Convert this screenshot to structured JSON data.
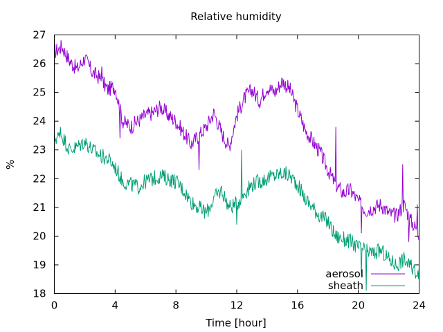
{
  "chart_data": {
    "type": "line",
    "title": "Relative humidity",
    "xlabel": "Time [hour]",
    "ylabel": "%",
    "xlim": [
      0,
      24
    ],
    "ylim": [
      18,
      27
    ],
    "xticks": [
      0,
      4,
      8,
      12,
      16,
      20,
      24
    ],
    "yticks": [
      18,
      19,
      20,
      21,
      22,
      23,
      24,
      25,
      26,
      27
    ],
    "grid": false,
    "legend_position": "bottom-right",
    "series": [
      {
        "name": "aerosol",
        "color": "#9400d3",
        "x": [
          0,
          0.5,
          1,
          1.5,
          2,
          2.5,
          3,
          3.5,
          4,
          4.5,
          5,
          5.5,
          6,
          6.5,
          7,
          7.5,
          8,
          8.5,
          9,
          9.5,
          10,
          10.5,
          11,
          11.5,
          12,
          12.5,
          13,
          13.5,
          14,
          14.5,
          15,
          15.5,
          16,
          16.5,
          17,
          17.5,
          18,
          18.5,
          19,
          19.5,
          20,
          20.5,
          21,
          21.5,
          22,
          22.5,
          23,
          23.5,
          24
        ],
        "y": [
          26.4,
          26.6,
          26.1,
          25.8,
          26.2,
          25.7,
          25.5,
          25.1,
          25.2,
          24.0,
          23.8,
          24.0,
          24.2,
          24.3,
          24.5,
          24.2,
          24.0,
          23.6,
          23.2,
          23.5,
          23.8,
          24.3,
          23.6,
          23.1,
          24.2,
          24.8,
          25.1,
          24.7,
          25.2,
          25.0,
          25.4,
          25.1,
          24.4,
          23.7,
          23.3,
          22.9,
          22.3,
          21.8,
          21.5,
          21.6,
          21.2,
          20.9,
          21.0,
          21.1,
          20.8,
          20.7,
          21.1,
          20.5,
          20.1
        ],
        "spikes": [
          [
            3.1,
            25.9
          ],
          [
            4.3,
            23.4
          ],
          [
            9.5,
            22.3
          ],
          [
            18.5,
            23.8
          ],
          [
            20.2,
            20.1
          ],
          [
            22.9,
            22.5
          ],
          [
            23.3,
            19.8
          ],
          [
            23.9,
            21.1
          ]
        ]
      },
      {
        "name": "sheath",
        "color": "#009e73",
        "x": [
          0,
          0.5,
          1,
          1.5,
          2,
          2.5,
          3,
          3.5,
          4,
          4.5,
          5,
          5.5,
          6,
          6.5,
          7,
          7.5,
          8,
          8.5,
          9,
          9.5,
          10,
          10.5,
          11,
          11.5,
          12,
          12.5,
          13,
          13.5,
          14,
          14.5,
          15,
          15.5,
          16,
          16.5,
          17,
          17.5,
          18,
          18.5,
          19,
          19.5,
          20,
          20.5,
          21,
          21.5,
          22,
          22.5,
          23,
          23.5,
          24
        ],
        "y": [
          23.4,
          23.5,
          23.0,
          23.1,
          23.3,
          23.0,
          22.8,
          22.7,
          22.4,
          21.9,
          21.8,
          21.7,
          21.9,
          22.0,
          22.1,
          22.0,
          21.9,
          21.6,
          21.2,
          21.0,
          20.8,
          21.3,
          21.6,
          21.0,
          21.1,
          21.5,
          21.8,
          21.9,
          22.0,
          22.1,
          22.2,
          22.1,
          21.8,
          21.3,
          21.0,
          20.7,
          20.5,
          20.0,
          19.9,
          19.8,
          19.6,
          19.5,
          19.4,
          19.5,
          19.2,
          19.0,
          19.2,
          18.9,
          18.7
        ],
        "spikes": [
          [
            0.4,
            23.8
          ],
          [
            12.0,
            20.4
          ],
          [
            12.3,
            23.0
          ],
          [
            20.2,
            18.6
          ],
          [
            20.5,
            18.1
          ],
          [
            23.9,
            18.6
          ]
        ]
      }
    ]
  }
}
